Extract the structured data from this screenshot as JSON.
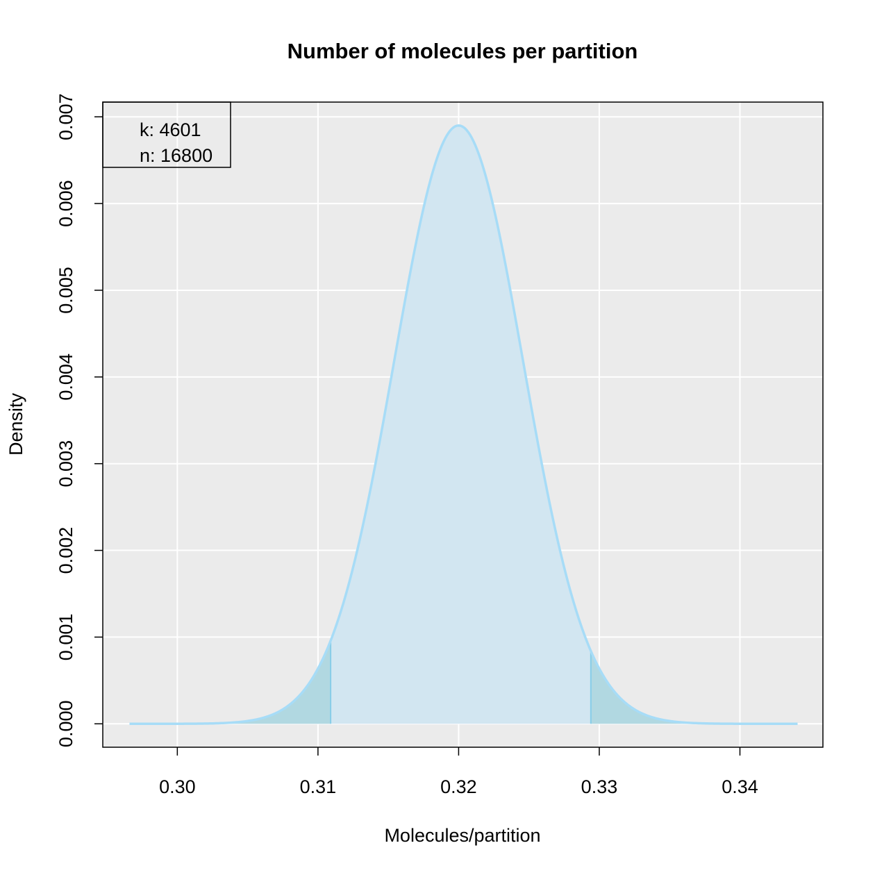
{
  "chart_data": {
    "type": "area",
    "title": "Number of molecules per partition",
    "xlabel": "Molecules/partition",
    "ylabel": "Density",
    "xlim": [
      0.2947,
      0.3459
    ],
    "ylim": [
      -0.00027,
      0.00717
    ],
    "x_ticks": [
      0.3,
      0.31,
      0.32,
      0.33,
      0.34
    ],
    "x_tick_labels": [
      "0.30",
      "0.31",
      "0.32",
      "0.33",
      "0.34"
    ],
    "y_ticks": [
      0.0,
      0.001,
      0.002,
      0.003,
      0.004,
      0.005,
      0.006,
      0.007
    ],
    "y_tick_labels": [
      "0.000",
      "0.001",
      "0.002",
      "0.003",
      "0.004",
      "0.005",
      "0.006",
      "0.007"
    ],
    "grid": true,
    "background_color": "#ebebeb",
    "curve": {
      "x_range": [
        0.2966,
        0.3441
      ],
      "mean": 0.32,
      "peak_density": 0.0069,
      "sd": 0.00458,
      "line_color": "#a7dcf7",
      "fill_color": "#d2e6f1"
    },
    "tails": {
      "lower_cutoff": 0.3109,
      "upper_cutoff": 0.3294,
      "fill_color": "#b1d8e1",
      "line_color": "#87cde8"
    },
    "legend": {
      "position": "top-left",
      "lines": [
        "k: 4601",
        "n: 16800"
      ]
    }
  }
}
